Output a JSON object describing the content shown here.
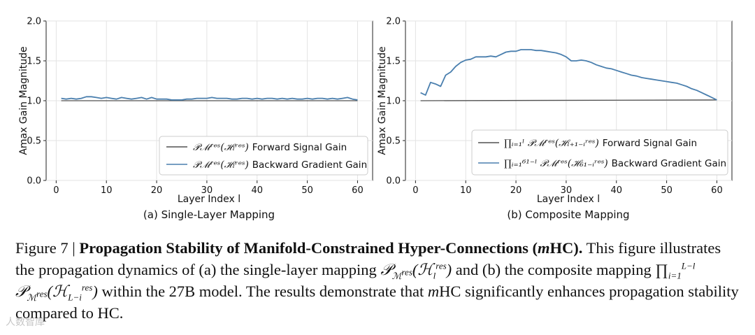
{
  "chart_data": [
    {
      "type": "line",
      "id": "a",
      "subtitle": "(a) Single-Layer Mapping",
      "xlabel": "Layer Index l",
      "ylabel": "Amax Gain Magnitude",
      "xlim": [
        -2,
        63
      ],
      "ylim": [
        0.0,
        2.0
      ],
      "xticks": [
        "0",
        "10",
        "20",
        "30",
        "40",
        "50",
        "60"
      ],
      "yticks": [
        "0.0",
        "0.5",
        "1.0",
        "1.5",
        "2.0"
      ],
      "legend_position": "lower-right",
      "series": [
        {
          "name": "Forward Signal Gain",
          "color": "#505050",
          "x": [
            1,
            60
          ],
          "values": [
            1.0,
            1.0
          ]
        },
        {
          "name": "Backward Gradient Gain",
          "color": "#4a7fae",
          "x": [
            1,
            2,
            3,
            4,
            5,
            6,
            7,
            8,
            9,
            10,
            11,
            12,
            13,
            14,
            15,
            16,
            17,
            18,
            19,
            20,
            21,
            22,
            23,
            24,
            25,
            26,
            27,
            28,
            29,
            30,
            31,
            32,
            33,
            34,
            35,
            36,
            37,
            38,
            39,
            40,
            41,
            42,
            43,
            44,
            45,
            46,
            47,
            48,
            49,
            50,
            51,
            52,
            53,
            54,
            55,
            56,
            57,
            58,
            59,
            60
          ],
          "values": [
            1.03,
            1.02,
            1.03,
            1.02,
            1.03,
            1.05,
            1.05,
            1.04,
            1.03,
            1.04,
            1.03,
            1.02,
            1.04,
            1.03,
            1.02,
            1.03,
            1.04,
            1.02,
            1.04,
            1.02,
            1.02,
            1.02,
            1.01,
            1.01,
            1.01,
            1.02,
            1.02,
            1.03,
            1.03,
            1.03,
            1.04,
            1.03,
            1.03,
            1.03,
            1.02,
            1.02,
            1.03,
            1.03,
            1.02,
            1.03,
            1.02,
            1.03,
            1.03,
            1.02,
            1.03,
            1.02,
            1.03,
            1.02,
            1.02,
            1.03,
            1.02,
            1.03,
            1.03,
            1.02,
            1.03,
            1.02,
            1.03,
            1.04,
            1.02,
            1.01
          ]
        }
      ]
    },
    {
      "type": "line",
      "id": "b",
      "subtitle": "(b) Composite Mapping",
      "xlabel": "Layer Index l",
      "ylabel": "Amax Gain Magnitude",
      "xlim": [
        -2,
        63
      ],
      "ylim": [
        0.0,
        2.0
      ],
      "xticks": [
        "0",
        "10",
        "20",
        "30",
        "40",
        "50",
        "60"
      ],
      "yticks": [
        "0.0",
        "0.5",
        "1.0",
        "1.5",
        "2.0"
      ],
      "legend_position": "lower-right",
      "series": [
        {
          "name": "Forward Signal Gain",
          "color": "#505050",
          "x": [
            1,
            60
          ],
          "values": [
            1.0,
            1.01
          ]
        },
        {
          "name": "Backward Gradient Gain",
          "color": "#4a7fae",
          "x": [
            1,
            2,
            3,
            4,
            5,
            6,
            7,
            8,
            9,
            10,
            11,
            12,
            13,
            14,
            15,
            16,
            17,
            18,
            19,
            20,
            21,
            22,
            23,
            24,
            25,
            26,
            27,
            28,
            29,
            30,
            31,
            32,
            33,
            34,
            35,
            36,
            37,
            38,
            39,
            40,
            41,
            42,
            43,
            44,
            45,
            46,
            47,
            48,
            49,
            50,
            51,
            52,
            53,
            54,
            55,
            56,
            57,
            58,
            59,
            60
          ],
          "values": [
            1.1,
            1.07,
            1.23,
            1.21,
            1.18,
            1.32,
            1.36,
            1.43,
            1.48,
            1.51,
            1.52,
            1.55,
            1.55,
            1.55,
            1.56,
            1.55,
            1.58,
            1.61,
            1.62,
            1.62,
            1.64,
            1.64,
            1.64,
            1.63,
            1.63,
            1.62,
            1.61,
            1.6,
            1.58,
            1.55,
            1.5,
            1.5,
            1.51,
            1.5,
            1.48,
            1.45,
            1.43,
            1.41,
            1.4,
            1.38,
            1.36,
            1.34,
            1.32,
            1.31,
            1.29,
            1.28,
            1.27,
            1.26,
            1.25,
            1.24,
            1.23,
            1.22,
            1.2,
            1.18,
            1.15,
            1.13,
            1.1,
            1.07,
            1.04,
            1.01
          ]
        }
      ]
    }
  ],
  "legend_math": {
    "a_forward": "𝒫ℳʳᵉˢ(ℋₗʳᵉˢ)",
    "a_backward": "𝒫ℳʳᵉˢ(ℋₗʳᵉˢ)",
    "b_forward": "∏ᵢ₌₁ˡ 𝒫ℳʳᵉˢ(ℋₗ₊₁₋ᵢʳᵉˢ)",
    "b_backward": "∏ᵢ₌₁⁶¹⁻ˡ 𝒫ℳʳᵉˢ(ℋ₆₁₋ᵢʳᵉˢ)"
  },
  "caption": {
    "figure_label": "Figure 7 |",
    "title_a": "Propagation Stability of Manifold-Constrained Hyper-Connections (",
    "title_m": "m",
    "title_b": "HC).",
    "body_1": " This figure illustrates the propagation dynamics of (a) the single-layer mapping ",
    "math_1": "𝒫",
    "math_1_sub": "ℳ",
    "math_1_sub_sup": "res",
    "math_1_arg": "(ℋ",
    "math_1_arg_sub": "l",
    "math_1_arg_sup": "res",
    "math_1_close": ")",
    "body_2": " and (b) the composite mapping ",
    "math_2_prod": "∏",
    "math_2_prod_sub": "i=1",
    "math_2_prod_sup": "L−l",
    "math_2_p": " 𝒫",
    "math_2_arg_sub": "L−i",
    "body_3": " within the 27B model. The results demonstrate that ",
    "body_m": "m",
    "body_4": "HC significantly enhances propagation stability compared to HC."
  },
  "watermark": "人数智库"
}
